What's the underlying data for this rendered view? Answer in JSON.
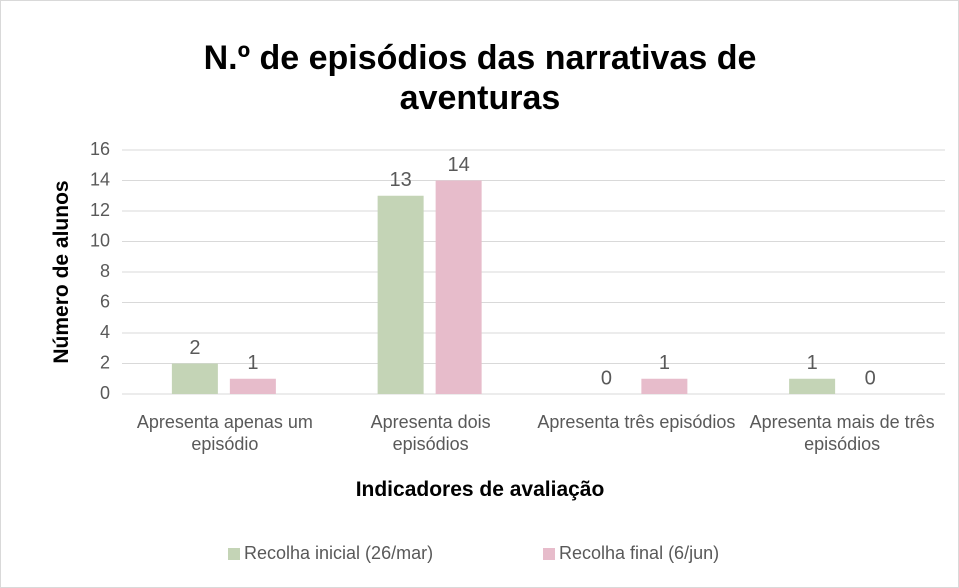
{
  "chart_data": {
    "type": "bar",
    "title": "N.º de episódios das narrativas de aventuras",
    "xlabel": "Indicadores de avaliação",
    "ylabel": "Número de alunos",
    "categories": [
      "Apresenta apenas um episódio",
      "Apresenta dois episódios",
      "Apresenta três episódios",
      "Apresenta mais de três episódios"
    ],
    "series": [
      {
        "name": "Recolha inicial (26/mar)",
        "color": "#c4d4b6",
        "values": [
          2,
          13,
          0,
          1
        ]
      },
      {
        "name": "Recolha final (6/jun)",
        "color": "#e7bccb",
        "values": [
          1,
          14,
          1,
          0
        ]
      }
    ],
    "ylim": [
      0,
      16
    ],
    "yticks": [
      0,
      2,
      4,
      6,
      8,
      10,
      12,
      14,
      16
    ],
    "grid": true,
    "legend": "bottom"
  }
}
